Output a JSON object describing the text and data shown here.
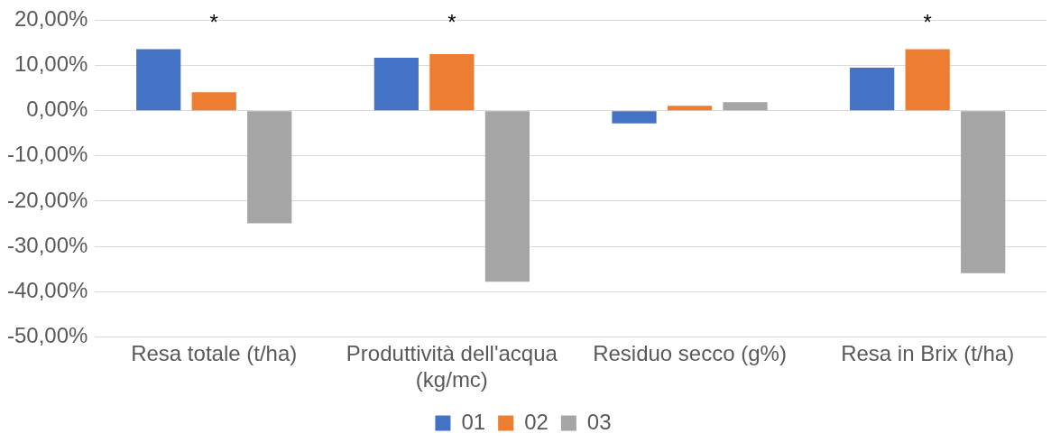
{
  "chart_data": {
    "type": "bar",
    "categories": [
      "Resa totale (t/ha)",
      "Produttività dell'acqua (kg/mc)",
      "Residuo secco (g%)",
      "Resa in Brix (t/ha)"
    ],
    "series": [
      {
        "name": "01",
        "color": "#4472c4",
        "values": [
          13.6,
          11.7,
          -2.8,
          9.5
        ]
      },
      {
        "name": "02",
        "color": "#ed7d31",
        "values": [
          4.1,
          12.5,
          1.1,
          13.6
        ],
        "value_labels": [
          "*",
          "*",
          null,
          "*"
        ]
      },
      {
        "name": "03",
        "color": "#a5a5a5",
        "values": [
          -24.9,
          -37.8,
          1.9,
          -35.9
        ]
      }
    ],
    "ylim": [
      -50,
      20
    ],
    "yticks": [
      {
        "value": 20,
        "label": "20,00%"
      },
      {
        "value": 10,
        "label": "10,00%"
      },
      {
        "value": 0,
        "label": "0,00%"
      },
      {
        "value": -10,
        "label": "-10,00%"
      },
      {
        "value": -20,
        "label": "-20,00%"
      },
      {
        "value": -30,
        "label": "-30,00%"
      },
      {
        "value": -40,
        "label": "-40,00%"
      },
      {
        "value": -50,
        "label": "-50,00%"
      }
    ],
    "grid": "y",
    "legend": "bottom"
  }
}
